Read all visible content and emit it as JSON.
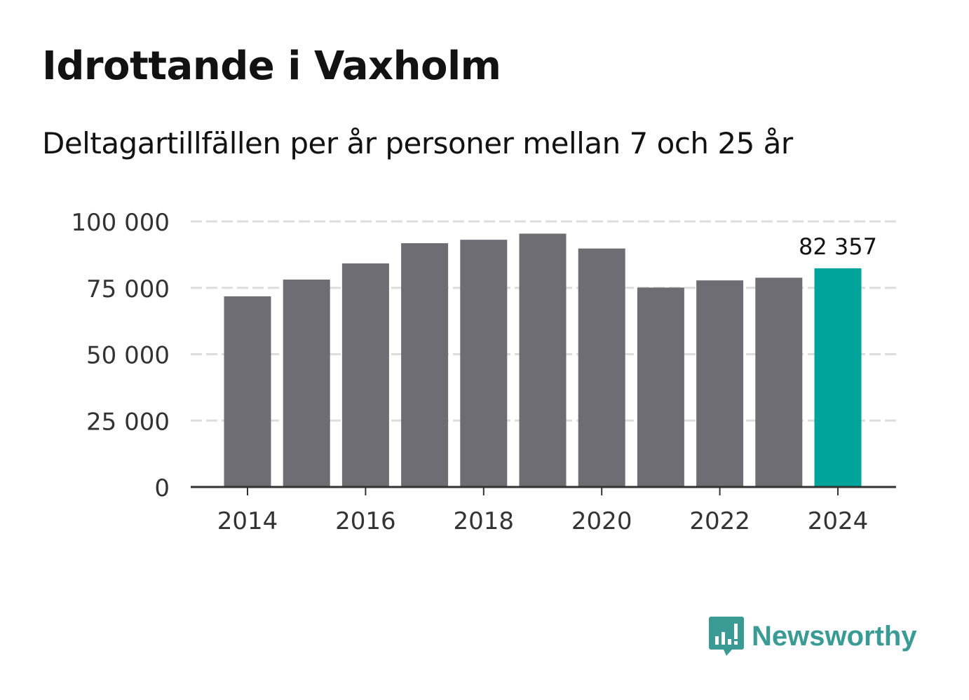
{
  "title": "Idrottande i Vaxholm",
  "subtitle": "Deltagartillfällen per år personer mellan 7 och 25 år",
  "brand": {
    "name": "Newsworthy",
    "icon": "newsworthy-logo-icon"
  },
  "colors": {
    "bar": "#6e6d73",
    "highlight": "#00a49b",
    "grid": "#dddddd",
    "axis": "#333333",
    "text": "#333333",
    "brand": "#3a9a94"
  },
  "chart_data": {
    "type": "bar",
    "title": "Idrottande i Vaxholm",
    "subtitle": "Deltagartillfällen per år personer mellan 7 och 25 år",
    "xlabel": "",
    "ylabel": "",
    "categories": [
      2014,
      2015,
      2016,
      2017,
      2018,
      2019,
      2020,
      2021,
      2022,
      2023,
      2024
    ],
    "values": [
      71800,
      78100,
      84200,
      91800,
      93100,
      95400,
      89800,
      75100,
      77800,
      78800,
      82357
    ],
    "highlight_index": 10,
    "data_labels": [
      {
        "index": 10,
        "text": "82 357"
      }
    ],
    "ylim": [
      0,
      100000
    ],
    "yticks": [
      0,
      25000,
      50000,
      75000,
      100000
    ],
    "ytick_labels": [
      "0",
      "25 000",
      "50 000",
      "75 000",
      "100 000"
    ],
    "xticks": [
      2014,
      2016,
      2018,
      2020,
      2022,
      2024
    ],
    "xtick_labels": [
      "2014",
      "2016",
      "2018",
      "2020",
      "2022",
      "2024"
    ],
    "grid": true,
    "legend": "none"
  }
}
